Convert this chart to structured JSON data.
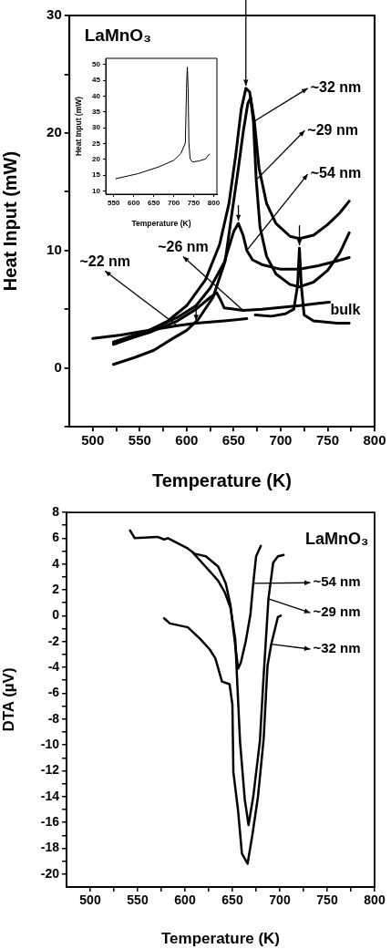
{
  "chart_data": [
    {
      "type": "line",
      "xlabel": "Temperature (K)",
      "ylabel": "Heat Input (mW)",
      "annotations": [
        "LaMnO₃"
      ],
      "xlim": [
        475,
        800
      ],
      "ylim": [
        -5,
        30
      ],
      "xticks": [
        500,
        {
          "value": 525,
          "label": null
        },
        550,
        {
          "value": 575,
          "label": null
        },
        600,
        {
          "value": 625,
          "label": null
        },
        650,
        {
          "value": 675,
          "label": null
        },
        700,
        {
          "value": 725,
          "label": null
        },
        750,
        {
          "value": 775,
          "label": null
        },
        800
      ],
      "yticks": [
        {
          "value": -5,
          "label": null
        },
        0,
        {
          "value": 5,
          "label": null
        },
        10,
        {
          "value": 15,
          "label": null
        },
        20,
        {
          "value": 25,
          "label": null
        },
        30
      ],
      "series": [
        {
          "name": "~32 nm",
          "color": "#000000",
          "x": [
            522,
            550,
            580,
            600,
            620,
            635,
            645,
            652,
            658,
            663,
            667,
            672,
            677,
            685,
            695,
            710,
            720,
            735,
            750,
            763,
            773
          ],
          "values": [
            2.0,
            2.8,
            4,
            5.3,
            7.5,
            10.5,
            14,
            18,
            22,
            23.8,
            23.5,
            21,
            17,
            14,
            12.3,
            11.2,
            11,
            11.3,
            12.2,
            13.2,
            14.2
          ]
        },
        {
          "name": "~29 nm",
          "color": "#000000",
          "x": [
            522,
            545,
            565,
            585,
            600,
            612,
            628,
            641,
            648,
            655,
            660,
            665,
            668,
            671,
            674,
            678,
            685,
            695,
            710,
            720,
            735,
            750,
            763,
            773
          ],
          "values": [
            0.3,
            0.9,
            1.5,
            2.5,
            3.2,
            4.1,
            6,
            9.1,
            13.1,
            17,
            20,
            22.5,
            23,
            21,
            16,
            12,
            9.5,
            8,
            7.1,
            6.9,
            7.3,
            8.3,
            9.8,
            11.5
          ]
        },
        {
          "name": "~54 nm",
          "color": "#000000",
          "x": [
            522,
            560,
            590,
            610,
            625,
            640,
            650,
            655,
            660,
            664,
            670,
            680,
            700,
            720,
            740,
            760,
            773
          ],
          "values": [
            2.2,
            3.2,
            4.3,
            5.3,
            6.8,
            9,
            11.6,
            12.3,
            11.3,
            10,
            9.2,
            8.8,
            8.4,
            8.4,
            8.7,
            9.1,
            9.4
          ]
        },
        {
          "name": "~26 nm",
          "color": "#000000",
          "x": [
            522,
            560,
            590,
            610,
            625,
            632,
            636,
            640,
            660,
            680,
            720,
            740,
            752
          ],
          "values": [
            2.1,
            3.0,
            4.0,
            5.0,
            6.0,
            6.4,
            5.8,
            5.1,
            4.9,
            5.0,
            5.3,
            5.5,
            5.6
          ]
        },
        {
          "name": "~22 nm",
          "color": "#000000",
          "x": [
            500,
            530,
            560,
            590,
            610,
            640,
            664
          ],
          "values": [
            2.5,
            2.8,
            3.2,
            3.6,
            3.8,
            4.0,
            4.2
          ]
        },
        {
          "name": "bulk",
          "color": "#000000",
          "x": [
            673,
            690,
            705,
            714,
            718,
            720,
            722,
            725,
            735,
            760,
            773
          ],
          "values": [
            4.5,
            4.4,
            4.6,
            5,
            7,
            10.2,
            7,
            4.5,
            4.0,
            3.8,
            3.8
          ]
        }
      ],
      "legend": "right"
    },
    {
      "type": "line",
      "xlabel": "Temperature (K)",
      "ylabel": "Heat Input (mW)",
      "xlim": [
        530,
        808
      ],
      "ylim": [
        9,
        52
      ],
      "xticks": [
        550,
        600,
        650,
        700,
        750,
        800
      ],
      "yticks": [
        10,
        15,
        20,
        25,
        30,
        35,
        40,
        45,
        50
      ],
      "series": [
        {
          "color": "#000000",
          "x": [
            555,
            611,
            664,
            700,
            718,
            729,
            732,
            734,
            736,
            738,
            741,
            747,
            763,
            780,
            789
          ],
          "values": [
            13.9,
            15.5,
            17.7,
            19.7,
            21.9,
            25.2,
            42.7,
            49.2,
            42.7,
            25.2,
            20.2,
            19.2,
            19.5,
            20.2,
            21.7
          ]
        }
      ]
    },
    {
      "type": "line",
      "xlabel": "Temperature (K)",
      "ylabel": "DTA (µV)",
      "annotations": [
        "LaMnO₃"
      ],
      "xlim": [
        475,
        800
      ],
      "ylim": [
        -21,
        8
      ],
      "xticks": [
        500,
        {
          "value": 525,
          "label": null
        },
        550,
        {
          "value": 575,
          "label": null
        },
        600,
        {
          "value": 625,
          "label": null
        },
        650,
        {
          "value": 675,
          "label": null
        },
        700,
        {
          "value": 725,
          "label": null
        },
        750,
        {
          "value": 775,
          "label": null
        },
        800
      ],
      "yticks": [
        -20,
        {
          "value": -19,
          "label": null
        },
        -18,
        {
          "value": -17,
          "label": null
        },
        -16,
        {
          "value": -15,
          "label": null
        },
        -14,
        {
          "value": -13,
          "label": null
        },
        -12,
        {
          "value": -11,
          "label": null
        },
        -10,
        {
          "value": -9,
          "label": null
        },
        -8,
        {
          "value": -7,
          "label": null
        },
        -6,
        {
          "value": -5,
          "label": null
        },
        -4,
        {
          "value": -3,
          "label": null
        },
        -2,
        {
          "value": -1,
          "label": null
        },
        0,
        {
          "value": 1,
          "label": null
        },
        2,
        {
          "value": 3,
          "label": null
        },
        4,
        {
          "value": 5,
          "label": null
        },
        6,
        {
          "value": 7,
          "label": null
        },
        8
      ],
      "series": [
        {
          "name": "~54 nm",
          "color": "#000000",
          "x": [
            542,
            547,
            571,
            578,
            582,
            603,
            610,
            622,
            635,
            643,
            648,
            651,
            654,
            656,
            659,
            664,
            669,
            672,
            675,
            680
          ],
          "values": [
            6.6,
            6.0,
            6.1,
            5.9,
            6.0,
            5.2,
            4.8,
            4.6,
            3.8,
            2.5,
            0.8,
            -1.1,
            -2.9,
            -4.1,
            -3.6,
            -2.0,
            0.1,
            2.5,
            4.6,
            5.4
          ]
        },
        {
          "name": "~29 nm",
          "color": "#000000",
          "x": [
            608,
            629,
            635,
            642,
            648,
            653,
            655,
            658,
            663,
            667,
            672,
            679,
            683,
            688,
            693,
            698,
            704
          ],
          "values": [
            4.9,
            3.2,
            2.7,
            1.8,
            0.6,
            -1.8,
            -5,
            -9.7,
            -14.2,
            -16.2,
            -14.0,
            -9.7,
            -4.6,
            1.3,
            4.1,
            4.6,
            4.7
          ]
        },
        {
          "name": "~32 nm",
          "color": "#000000",
          "x": [
            578,
            584,
            603,
            616,
            626,
            632,
            639,
            647,
            650,
            651,
            656,
            660,
            666,
            671,
            677,
            683,
            687,
            691,
            698,
            701
          ],
          "values": [
            -0.2,
            -0.6,
            -0.9,
            -1.8,
            -2.6,
            -3.3,
            -5.1,
            -5.3,
            -6.9,
            -12.1,
            -15.1,
            -18.4,
            -19.2,
            -17.0,
            -14.0,
            -9.5,
            -3.9,
            -2.2,
            -0.1,
            0.0
          ]
        }
      ],
      "legend": "right"
    }
  ]
}
